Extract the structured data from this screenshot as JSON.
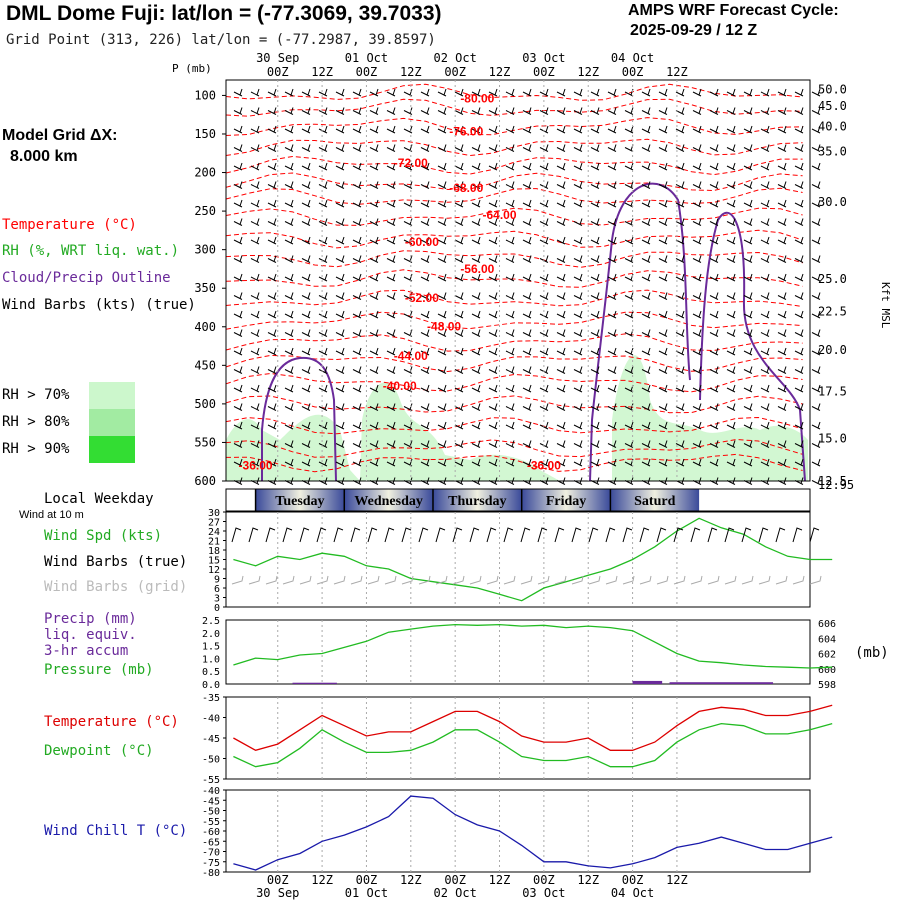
{
  "header": {
    "title": "DML Dome Fuji:  lat/lon = (-77.3069, 39.7033)",
    "grid_point": "Grid Point (313, 226) lat/lon = (-77.2987, 39.8597)",
    "cycle_line1": "AMPS WRF Forecast Cycle:",
    "cycle_line2": "2025-09-29 / 12  Z"
  },
  "left_panel": {
    "model_grid_line1": "Model Grid ΔX:",
    "model_grid_line2": "8.000 km",
    "legend_temperature": "Temperature (°C)",
    "legend_rh": "RH (%, WRT liq. wat.)",
    "legend_cloud": "Cloud/Precip Outline",
    "legend_wind": "Wind Barbs (kts) (true)",
    "rh_70": "RH > 70%",
    "rh_80": "RH > 80%",
    "rh_90": "RH > 90%",
    "local_weekday": "Local Weekday",
    "wind_at_10m": "Wind at 10 m",
    "wind_spd_label": "Wind Spd (kts)",
    "wind_barbs_true": "Wind Barbs (true)",
    "wind_barbs_grid": "Wind Barbs (grid)",
    "precip_line1": "Precip (mm)",
    "precip_line2": "liq. equiv.",
    "precip_line3": "3-hr accum",
    "pressure_label": "Pressure (mb)",
    "temperature_label": "Temperature (°C)",
    "dewpoint_label": "Dewpoint (°C)",
    "wind_chill_label": "Wind Chill T (°C)"
  },
  "colors": {
    "temperature": "#ff0000",
    "rh_green": "#22bb22",
    "cloud_outline": "#6a2a9a",
    "rh_70": "#ccf7cc",
    "rh_80": "#a2eba2",
    "rh_90": "#33dd33",
    "wind_chill": "#1a1aaa",
    "weekday_band_dark": "#3a4a9a",
    "weekday_band_light": "#f0f0e0"
  },
  "chart_data": [
    {
      "type": "contour",
      "name": "upper_air_cross_section",
      "y_axis_label": "P (mb)",
      "right_axis_label": "Kft MSL",
      "pressure_ticks": [
        100,
        150,
        200,
        250,
        300,
        350,
        400,
        450,
        500,
        550,
        600
      ],
      "kft_ticks": [
        {
          "label": "50.0",
          "p": 92
        },
        {
          "label": "45.0",
          "p": 114
        },
        {
          "label": "40.0",
          "p": 140
        },
        {
          "label": "35.0",
          "p": 173
        },
        {
          "label": "30.0",
          "p": 238
        },
        {
          "label": "25.0",
          "p": 338
        },
        {
          "label": "22.5",
          "p": 380
        },
        {
          "label": "20.0",
          "p": 430
        },
        {
          "label": "17.5",
          "p": 484
        },
        {
          "label": "15.0",
          "p": 545
        },
        {
          "label": "12.5",
          "p": 600
        },
        {
          "label": "12.95",
          "p": 600
        }
      ],
      "temperature_labels": [
        {
          "text": "-80.00",
          "hour": 66,
          "p": 109
        },
        {
          "text": "-76.00",
          "hour": 63,
          "p": 152
        },
        {
          "text": "-72.00",
          "hour": 48,
          "p": 193
        },
        {
          "text": "-68.00",
          "hour": 63,
          "p": 225
        },
        {
          "text": "-64.00",
          "hour": 72,
          "p": 260
        },
        {
          "text": "-60.00",
          "hour": 51,
          "p": 295
        },
        {
          "text": "-56.00",
          "hour": 66,
          "p": 330
        },
        {
          "text": "-52.00",
          "hour": 51,
          "p": 368
        },
        {
          "text": "-48.00",
          "hour": 57,
          "p": 405
        },
        {
          "text": "-44.00",
          "hour": 48,
          "p": 443
        },
        {
          "text": "-40.00",
          "hour": 45,
          "p": 482
        },
        {
          "text": "-36.00",
          "hour": 6,
          "p": 585
        },
        {
          "text": "-36.00",
          "hour": 84,
          "p": 585
        }
      ]
    },
    {
      "type": "line",
      "name": "wind_speed",
      "ylabel": "Wind Spd (kts)",
      "yticks": [
        0,
        3,
        6,
        9,
        12,
        15,
        18,
        21,
        24,
        27,
        30
      ],
      "ylim": [
        0,
        30
      ],
      "x_hours": [
        0,
        6,
        12,
        18,
        24,
        30,
        36,
        42,
        48,
        54,
        60,
        66,
        72,
        78,
        84,
        90,
        96,
        102,
        108,
        114,
        120,
        126,
        132,
        138,
        144,
        150,
        156,
        162
      ],
      "series": [
        {
          "values": [
            15,
            13,
            16,
            15,
            17,
            16,
            13,
            12,
            9,
            8,
            7,
            6,
            4,
            2,
            6,
            8,
            10,
            12,
            15,
            19,
            24,
            28,
            25,
            23,
            19,
            16,
            15,
            15
          ],
          "color": "#22bb22"
        }
      ]
    },
    {
      "type": "line",
      "name": "precip_pressure",
      "left_ylabel": "Precip (mm)",
      "right_ylabel": "(mb)",
      "left_ticks": [
        "0.0",
        "0.5",
        "1.0",
        "1.5",
        "2.0",
        "2.5"
      ],
      "right_ticks": [
        "598",
        "600",
        "602",
        "604",
        "606"
      ],
      "ylim_precip": [
        0,
        2.5
      ],
      "ylim_pressure": [
        598,
        606.4
      ],
      "x_hours": [
        0,
        6,
        12,
        18,
        24,
        30,
        36,
        42,
        48,
        54,
        60,
        66,
        72,
        78,
        84,
        90,
        96,
        102,
        108,
        114,
        120,
        126,
        132,
        138,
        144,
        150,
        156,
        162
      ],
      "series": [
        {
          "name": "Pressure (mb)",
          "values": [
            600.5,
            601.4,
            601.2,
            601.8,
            602.0,
            602.8,
            603.6,
            604.8,
            605.2,
            605.6,
            605.8,
            605.7,
            605.8,
            605.6,
            605.7,
            605.4,
            605.6,
            605.4,
            605.0,
            603.5,
            602.0,
            601.0,
            600.8,
            600.5,
            600.3,
            600.2,
            600.1,
            600.2
          ],
          "color": "#22bb22"
        }
      ],
      "precip_bars": [
        {
          "hour_from": 16,
          "hour_to": 28,
          "value": 0.05
        },
        {
          "hour_from": 108,
          "hour_to": 116,
          "value": 0.12
        },
        {
          "hour_from": 118,
          "hour_to": 146,
          "value": 0.07
        }
      ]
    },
    {
      "type": "line",
      "name": "temperature_dewpoint",
      "yticks": [
        -35,
        -40,
        -45,
        -50,
        -55
      ],
      "ylim": [
        -55,
        -35
      ],
      "x_hours": [
        0,
        6,
        12,
        18,
        24,
        30,
        36,
        42,
        48,
        54,
        60,
        66,
        72,
        78,
        84,
        90,
        96,
        102,
        108,
        114,
        120,
        126,
        132,
        138,
        144,
        150,
        156,
        162
      ],
      "series": [
        {
          "name": "Temperature (°C)",
          "values": [
            -45,
            -48,
            -46.5,
            -43,
            -39.5,
            -42,
            -44.5,
            -43.5,
            -43.5,
            -41,
            -38.5,
            -38.5,
            -41,
            -44.5,
            -46,
            -46,
            -45,
            -48,
            -48,
            -46,
            -42,
            -38.5,
            -37.5,
            -38,
            -39.5,
            -39.5,
            -38.5,
            -37
          ],
          "color": "#dd0000"
        },
        {
          "name": "Dewpoint (°C)",
          "values": [
            -49.5,
            -52,
            -51,
            -47.5,
            -43,
            -46,
            -48.5,
            -48.5,
            -48,
            -46,
            -43,
            -43,
            -46,
            -49.5,
            -50.5,
            -50.5,
            -49.5,
            -52,
            -52,
            -50.5,
            -46,
            -43,
            -41.5,
            -42,
            -44,
            -44,
            -43,
            -41.5
          ],
          "color": "#22bb22"
        }
      ]
    },
    {
      "type": "line",
      "name": "wind_chill",
      "ylabel": "Wind Chill T (°C)",
      "yticks": [
        -40,
        -45,
        -50,
        -55,
        -60,
        -65,
        -70,
        -75,
        -80
      ],
      "ylim": [
        -80,
        -40
      ],
      "x_hours": [
        0,
        6,
        12,
        18,
        24,
        30,
        36,
        42,
        48,
        54,
        60,
        66,
        72,
        78,
        84,
        90,
        96,
        102,
        108,
        114,
        120,
        126,
        132,
        138,
        144,
        150,
        156,
        162
      ],
      "series": [
        {
          "values": [
            -76,
            -79,
            -74,
            -71,
            -65,
            -62,
            -58,
            -53,
            -43,
            -44,
            -52,
            -57,
            -60,
            -67,
            -75,
            -75,
            -77,
            -78,
            -76,
            -73,
            -68,
            -66,
            -63,
            -66,
            -69,
            -69,
            -66,
            -63
          ],
          "color": "#1a1aaa"
        }
      ]
    }
  ],
  "time_axis": {
    "hour_labels": [
      "00Z",
      "12Z",
      "00Z",
      "12Z",
      "00Z",
      "12Z",
      "00Z",
      "12Z",
      "00Z",
      "12Z"
    ],
    "hour_label_hours": [
      12,
      24,
      36,
      48,
      60,
      72,
      84,
      96,
      108,
      120
    ],
    "day_labels": [
      "30 Sep",
      "01 Oct",
      "02 Oct",
      "03 Oct",
      "04 Oct"
    ],
    "day_label_hours": [
      12,
      36,
      60,
      84,
      108
    ],
    "weekdays": [
      "Tuesday",
      "Wednesday",
      "Thursday",
      "Friday",
      "Saturd"
    ],
    "weekday_center_hours": [
      18,
      42,
      66,
      90,
      114
    ]
  }
}
